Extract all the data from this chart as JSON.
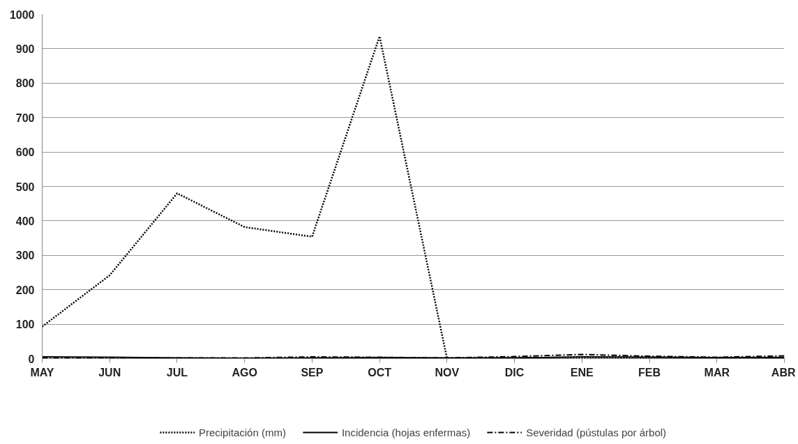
{
  "chart_data": {
    "type": "line",
    "ylim": [
      0,
      1000
    ],
    "categories": [
      "MAY",
      "JUN",
      "JUL",
      "AGO",
      "SEP",
      "OCT",
      "NOV",
      "DIC",
      "ENE",
      "FEB",
      "MAR",
      "ABR"
    ],
    "yticks": [
      0,
      100,
      200,
      300,
      400,
      500,
      600,
      700,
      800,
      900,
      1000
    ],
    "grid": "y",
    "legend": "bottom",
    "series": [
      {
        "name": "Precipitación (mm)",
        "color": "#000000",
        "line_style": "dotted",
        "values": [
          93,
          242,
          480,
          382,
          354,
          936,
          0,
          2,
          3,
          3,
          2,
          3
        ]
      },
      {
        "name": "Incidencia (hojas enfermas)",
        "color": "#000000",
        "line_style": "solid",
        "values": [
          5,
          4,
          2,
          1,
          2,
          3,
          2,
          2,
          5,
          4,
          3,
          3
        ]
      },
      {
        "name": "Severidad (pústulas por árbol)",
        "color": "#000000",
        "line_style": "dashdot",
        "values": [
          3,
          3,
          2,
          2,
          5,
          4,
          2,
          6,
          12,
          7,
          4,
          8
        ]
      }
    ]
  }
}
